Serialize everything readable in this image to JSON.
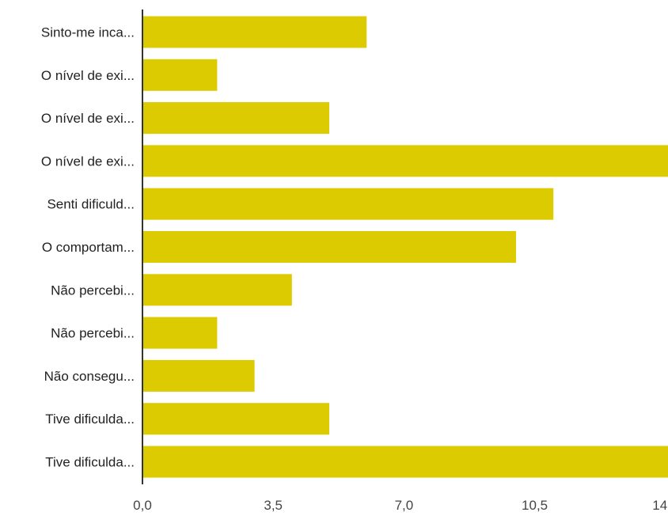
{
  "chart_data": {
    "type": "bar",
    "orientation": "horizontal",
    "categories": [
      "Sinto-me inca...",
      "O nível de exi...",
      "O nível de exi...",
      "O nível de exi...",
      "Senti dificuld...",
      "O comportam...",
      "Não percebi...",
      "Não percebi...",
      "Não consegu...",
      "Tive dificulda...",
      "Tive dificulda..."
    ],
    "values": [
      6,
      2,
      5,
      15,
      11,
      10,
      4,
      2,
      3,
      5,
      15
    ],
    "xlim": [
      0,
      15
    ],
    "ticks": [
      "0,0",
      "3,5",
      "7,0",
      "10,5",
      "14,0"
    ],
    "tick_values": [
      0,
      3.5,
      7,
      10.5,
      14
    ],
    "bar_color": "#dccb00",
    "axis_color": "#333333",
    "grid": false,
    "title": "",
    "xlabel": "",
    "ylabel": ""
  }
}
